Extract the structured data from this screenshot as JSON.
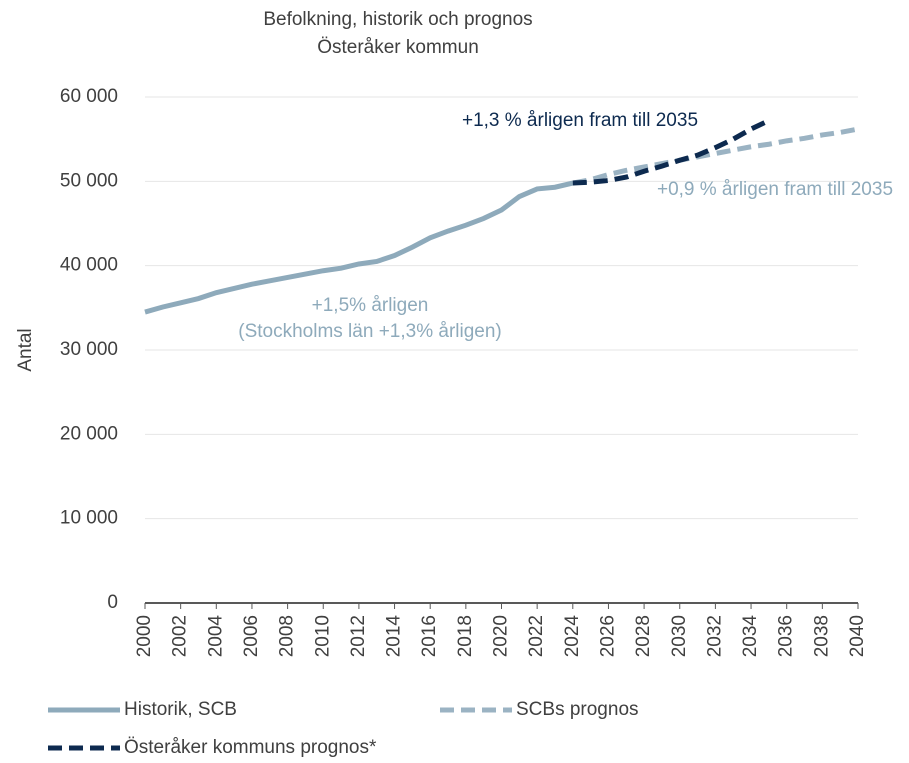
{
  "chart_data": {
    "type": "line",
    "title": "Befolkning, historik och prognos",
    "subtitle": "Österåker kommun",
    "y_label": "Antal",
    "x": [
      2000,
      2001,
      2002,
      2003,
      2004,
      2005,
      2006,
      2007,
      2008,
      2009,
      2010,
      2011,
      2012,
      2013,
      2014,
      2015,
      2016,
      2017,
      2018,
      2019,
      2020,
      2021,
      2022,
      2023,
      2024,
      2025,
      2026,
      2027,
      2028,
      2029,
      2030,
      2031,
      2032,
      2033,
      2034,
      2035,
      2036,
      2037,
      2038,
      2039,
      2040
    ],
    "xlim": [
      2000,
      2040
    ],
    "xticks": [
      2000,
      2002,
      2004,
      2006,
      2008,
      2010,
      2012,
      2014,
      2016,
      2018,
      2020,
      2022,
      2024,
      2026,
      2028,
      2030,
      2032,
      2034,
      2036,
      2038,
      2040
    ],
    "ylim": [
      0,
      60000
    ],
    "yticks": [
      0,
      {
        "value": 10000,
        "label": "10 000"
      },
      {
        "value": 20000,
        "label": "20 000"
      },
      {
        "value": 30000,
        "label": "30 000"
      },
      {
        "value": 40000,
        "label": "40 000"
      },
      {
        "value": 50000,
        "label": "50 000"
      },
      {
        "value": 60000,
        "label": "60 000"
      }
    ],
    "grid": true,
    "series": [
      {
        "name": "Historik, SCB",
        "color": "#8eaabb",
        "dashed": false,
        "values": [
          34500,
          35100,
          35600,
          36100,
          36800,
          37300,
          37800,
          38200,
          38600,
          39000,
          39400,
          39700,
          40200,
          40500,
          41200,
          42200,
          43300,
          44100,
          44800,
          45600,
          46600,
          48200,
          49100,
          49300,
          49800,
          null,
          null,
          null,
          null,
          null,
          null,
          null,
          null,
          null,
          null,
          null,
          null,
          null,
          null,
          null,
          null
        ]
      },
      {
        "name": "SCBs prognos",
        "color": "#9bb3c3",
        "dashed": true,
        "values": [
          null,
          null,
          null,
          null,
          null,
          null,
          null,
          null,
          null,
          null,
          null,
          null,
          null,
          null,
          null,
          null,
          null,
          null,
          null,
          null,
          null,
          null,
          null,
          null,
          49800,
          50200,
          50800,
          51300,
          51700,
          52100,
          52500,
          52900,
          53300,
          53700,
          54100,
          54400,
          54800,
          55100,
          55500,
          55800,
          56200
        ]
      },
      {
        "name": "Österåker kommuns prognos*",
        "color": "#0d2a4f",
        "dashed": true,
        "values": [
          null,
          null,
          null,
          null,
          null,
          null,
          null,
          null,
          null,
          null,
          null,
          null,
          null,
          null,
          null,
          null,
          null,
          null,
          null,
          null,
          null,
          null,
          null,
          null,
          49800,
          49900,
          50100,
          50500,
          51200,
          51800,
          52500,
          53100,
          54000,
          55000,
          56200,
          57200,
          null,
          null,
          null,
          null,
          null
        ]
      }
    ],
    "annotations": [
      {
        "text": "+1,3 % årligen fram till 2035",
        "color": "#0d2a4f"
      },
      {
        "text": "+0,9 % årligen fram till 2035",
        "color": "#8eaabb"
      },
      {
        "text": "+1,5% årligen",
        "color": "#8eaabb"
      },
      {
        "text": "(Stockholms län +1,3% årligen)",
        "color": "#8eaabb"
      }
    ]
  }
}
